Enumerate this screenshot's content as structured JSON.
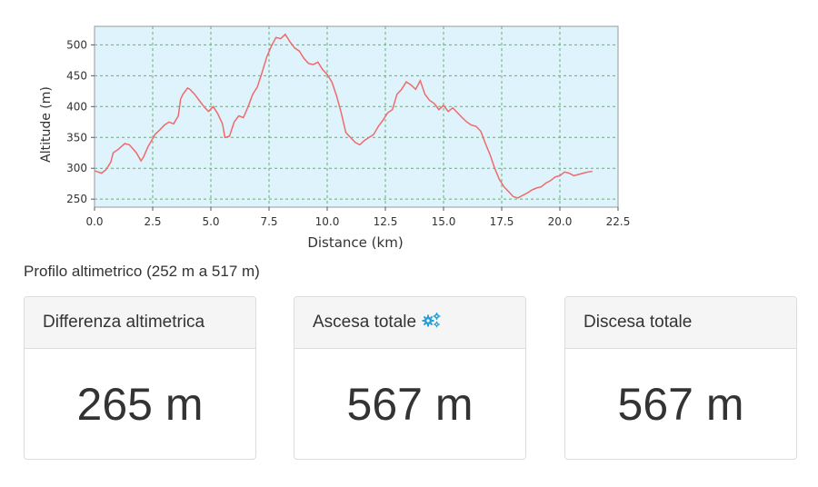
{
  "chart_data": {
    "type": "line",
    "xlabel": "Distance (km)",
    "ylabel": "Altitude (m)",
    "xlim": [
      0,
      22.5
    ],
    "ylim": [
      237,
      530
    ],
    "xticks": [
      0.0,
      2.5,
      5.0,
      7.5,
      10.0,
      12.5,
      15.0,
      17.5,
      20.0,
      22.5
    ],
    "xtick_labels": [
      "0.0",
      "2.5",
      "5.0",
      "7.5",
      "10.0",
      "12.5",
      "15.0",
      "17.5",
      "20.0",
      "22.5"
    ],
    "yticks": [
      250,
      300,
      350,
      400,
      450,
      500
    ],
    "ytick_labels": [
      "250",
      "300",
      "350",
      "400",
      "450",
      "500"
    ],
    "grid": true,
    "background_color": "#dff3fd",
    "line_color": "#ef6b6b",
    "grid_color": "#5cb85c",
    "x": [
      0.0,
      0.3,
      0.5,
      0.7,
      0.8,
      1.0,
      1.3,
      1.5,
      1.8,
      2.0,
      2.1,
      2.3,
      2.5,
      2.6,
      2.8,
      3.0,
      3.2,
      3.4,
      3.6,
      3.7,
      3.8,
      4.0,
      4.1,
      4.3,
      4.5,
      4.7,
      4.9,
      5.1,
      5.3,
      5.5,
      5.6,
      5.8,
      6.0,
      6.2,
      6.4,
      6.6,
      6.8,
      7.0,
      7.2,
      7.4,
      7.6,
      7.8,
      8.0,
      8.2,
      8.4,
      8.6,
      8.8,
      9.0,
      9.2,
      9.4,
      9.6,
      9.8,
      10.0,
      10.2,
      10.4,
      10.6,
      10.8,
      11.0,
      11.2,
      11.4,
      11.6,
      11.8,
      12.0,
      12.2,
      12.4,
      12.6,
      12.8,
      13.0,
      13.2,
      13.4,
      13.6,
      13.8,
      14.0,
      14.2,
      14.4,
      14.6,
      14.8,
      15.0,
      15.2,
      15.4,
      15.6,
      15.8,
      16.0,
      16.2,
      16.4,
      16.6,
      16.8,
      17.0,
      17.2,
      17.4,
      17.6,
      17.8,
      18.0,
      18.2,
      18.4,
      18.6,
      18.8,
      19.0,
      19.2,
      19.4,
      19.6,
      19.8,
      20.0,
      20.2,
      20.4,
      20.6,
      20.8,
      21.0,
      21.2,
      21.4
    ],
    "y": [
      296,
      292,
      298,
      310,
      325,
      330,
      340,
      338,
      325,
      312,
      318,
      335,
      348,
      355,
      362,
      370,
      375,
      372,
      385,
      412,
      420,
      430,
      428,
      420,
      410,
      400,
      392,
      400,
      388,
      372,
      350,
      352,
      375,
      385,
      382,
      400,
      420,
      432,
      455,
      480,
      498,
      512,
      510,
      517,
      505,
      495,
      490,
      478,
      470,
      468,
      472,
      460,
      452,
      440,
      418,
      390,
      358,
      350,
      342,
      338,
      345,
      350,
      355,
      368,
      378,
      390,
      395,
      420,
      428,
      440,
      435,
      428,
      442,
      420,
      410,
      405,
      395,
      402,
      392,
      398,
      390,
      382,
      375,
      370,
      368,
      360,
      340,
      322,
      300,
      282,
      270,
      262,
      254,
      252,
      256,
      260,
      265,
      268,
      270,
      276,
      280,
      286,
      288,
      294,
      292,
      288,
      290,
      292,
      294,
      295
    ]
  },
  "caption": "Profilo altimetrico (252 m a 517 m)",
  "cards": [
    {
      "title": "Differenza altimetrica",
      "value": "265 m"
    },
    {
      "title": "Ascesa totale",
      "value": "567 m",
      "icon": "gears-icon",
      "icon_color": "#2a9fd6"
    },
    {
      "title": "Discesa totale",
      "value": "567 m"
    }
  ]
}
